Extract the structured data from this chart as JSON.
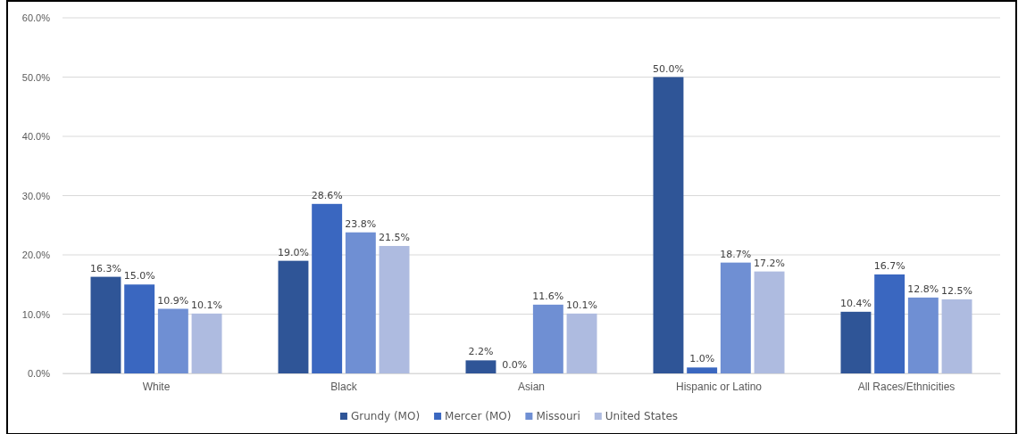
{
  "chart_data": {
    "type": "bar",
    "categories": [
      "White",
      "Black",
      "Asian",
      "Hispanic or Latino",
      "All Races/Ethnicities"
    ],
    "series": [
      {
        "name": "Grundy (MO)",
        "color": "#2f5597",
        "values": [
          16.3,
          19.0,
          2.2,
          50.0,
          10.4
        ]
      },
      {
        "name": "Mercer (MO)",
        "color": "#3a67c0",
        "values": [
          15.0,
          28.6,
          0.0,
          1.0,
          16.7
        ]
      },
      {
        "name": "Missouri",
        "color": "#6f8fd3",
        "values": [
          10.9,
          23.8,
          11.6,
          18.7,
          12.8
        ]
      },
      {
        "name": "United States",
        "color": "#aebbe0",
        "values": [
          10.1,
          21.5,
          10.1,
          17.2,
          12.5
        ]
      }
    ],
    "ylim": [
      0,
      60
    ],
    "yticks": [
      {
        "value": 0,
        "label": "0.0%"
      },
      {
        "value": 10,
        "label": "10.0%"
      },
      {
        "value": 20,
        "label": "20.0%"
      },
      {
        "value": 30,
        "label": "30.0%"
      },
      {
        "value": 40,
        "label": "40.0%"
      },
      {
        "value": 50,
        "label": "50.0%"
      },
      {
        "value": 60,
        "label": "60.0%"
      }
    ],
    "grid": "y",
    "legend": "bottom",
    "value_labels": [
      [
        "16.3%",
        "19.0%",
        "2.2%",
        "50.0%",
        "10.4%"
      ],
      [
        "15.0%",
        "28.6%",
        "0.0%",
        "1.0%",
        "16.7%"
      ],
      [
        "10.9%",
        "23.8%",
        "11.6%",
        "18.7%",
        "12.8%"
      ],
      [
        "10.1%",
        "21.5%",
        "10.1%",
        "17.2%",
        "12.5%"
      ]
    ]
  }
}
